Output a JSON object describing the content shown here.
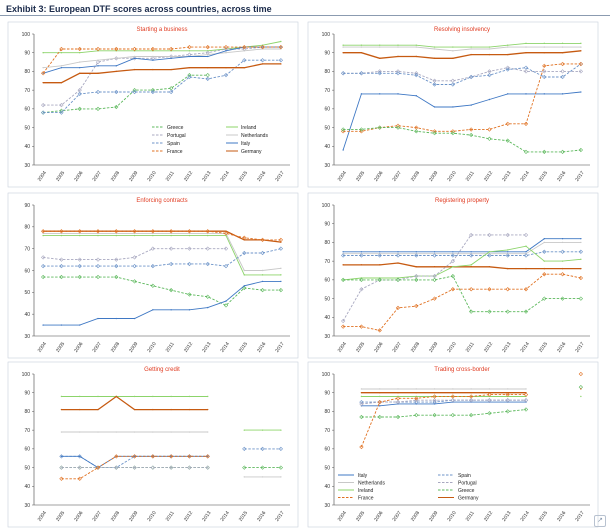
{
  "header": {
    "title": "Exhibit 3: European DTF scores across countries, across time"
  },
  "colors": {
    "Greece": "#5cb85c",
    "Ireland": "#8cd46a",
    "Portugal": "#a8a8c0",
    "Netherlands": "#c8c8c8",
    "Spain": "#6c93c8",
    "Italy": "#3f78c4",
    "France": "#e07020",
    "Germany": "#c65a11"
  },
  "chart_data": [
    {
      "type": "line",
      "title": "Starting a business",
      "categories": [
        "2004",
        "2005",
        "2006",
        "2007",
        "2008",
        "2009",
        "2010",
        "2011",
        "2012",
        "2013",
        "2014",
        "2015",
        "2016",
        "2017"
      ],
      "ylim": [
        30,
        100
      ],
      "yticks": [
        30,
        40,
        50,
        60,
        70,
        80,
        90,
        100
      ],
      "legend": "bottom-right",
      "series": [
        {
          "name": "Greece",
          "dash": true,
          "values": [
            58,
            59,
            60,
            60,
            61,
            70,
            70,
            71,
            78,
            78,
            null,
            null,
            null,
            null
          ]
        },
        {
          "name": "Ireland",
          "dash": false,
          "values": [
            90,
            90,
            90,
            91,
            91,
            91,
            91,
            91,
            91,
            91,
            92,
            93,
            94,
            96
          ]
        },
        {
          "name": "Portugal",
          "dash": true,
          "values": [
            62,
            62,
            70,
            85,
            87,
            87,
            87,
            88,
            89,
            90,
            92,
            92,
            93,
            93
          ]
        },
        {
          "name": "Netherlands",
          "dash": false,
          "values": [
            82,
            83,
            85,
            86,
            87,
            88,
            88,
            88,
            88,
            89,
            90,
            91,
            92,
            92
          ]
        },
        {
          "name": "Spain",
          "dash": true,
          "values": [
            58,
            58,
            68,
            69,
            69,
            69,
            69,
            69,
            77,
            76,
            78,
            86,
            86,
            86
          ]
        },
        {
          "name": "Italy",
          "dash": false,
          "values": [
            79,
            82,
            82,
            83,
            83,
            87,
            86,
            87,
            88,
            88,
            91,
            93,
            93,
            93
          ]
        },
        {
          "name": "France",
          "dash": true,
          "values": [
            79,
            92,
            92,
            92,
            92,
            92,
            92,
            92,
            93,
            93,
            93,
            93,
            93,
            93
          ]
        },
        {
          "name": "Germany",
          "dash": false,
          "values": [
            74,
            74,
            79,
            79,
            80,
            81,
            81,
            81,
            82,
            82,
            82,
            82,
            84,
            84
          ]
        }
      ]
    },
    {
      "type": "line",
      "title": "Resolving insolvency",
      "categories": [
        "2004",
        "2005",
        "2006",
        "2007",
        "2008",
        "2009",
        "2010",
        "2011",
        "2012",
        "2013",
        "2014",
        "2015",
        "2016",
        "2017"
      ],
      "ylim": [
        30,
        100
      ],
      "yticks": [
        30,
        40,
        50,
        60,
        70,
        80,
        90,
        100
      ],
      "legend": "none",
      "series": [
        {
          "name": "Ireland",
          "dash": false,
          "values": [
            94,
            94,
            94,
            94,
            94,
            93,
            93,
            93,
            93,
            94,
            95,
            95,
            95,
            95
          ]
        },
        {
          "name": "Netherlands",
          "dash": false,
          "values": [
            93,
            93,
            93,
            93,
            93,
            92,
            91,
            92,
            92,
            93,
            93,
            93,
            93,
            93
          ]
        },
        {
          "name": "Germany",
          "dash": false,
          "values": [
            90,
            90,
            87,
            88,
            88,
            87,
            87,
            89,
            89,
            89,
            90,
            90,
            90,
            91
          ]
        },
        {
          "name": "Portugal",
          "dash": true,
          "values": [
            79,
            79,
            80,
            80,
            79,
            75,
            75,
            77,
            80,
            82,
            80,
            80,
            80,
            80
          ]
        },
        {
          "name": "Spain",
          "dash": true,
          "values": [
            79,
            79,
            79,
            79,
            78,
            73,
            73,
            77,
            78,
            81,
            82,
            77,
            77,
            84
          ]
        },
        {
          "name": "Italy",
          "dash": false,
          "values": [
            38,
            68,
            68,
            68,
            67,
            61,
            61,
            62,
            65,
            68,
            68,
            68,
            68,
            69
          ]
        },
        {
          "name": "France",
          "dash": true,
          "values": [
            48,
            48,
            50,
            51,
            50,
            48,
            48,
            49,
            49,
            52,
            52,
            83,
            84,
            84
          ]
        },
        {
          "name": "Greece",
          "dash": true,
          "values": [
            49,
            49,
            50,
            50,
            48,
            47,
            47,
            46,
            44,
            43,
            37,
            37,
            37,
            38
          ]
        }
      ]
    },
    {
      "type": "line",
      "title": "Enforcing contracts",
      "categories": [
        "2004",
        "2005",
        "2006",
        "2007",
        "2008",
        "2009",
        "2010",
        "2011",
        "2012",
        "2013",
        "2014",
        "2015",
        "2016",
        "2017"
      ],
      "ylim": [
        30,
        90
      ],
      "yticks": [
        30,
        40,
        50,
        60,
        70,
        80,
        90
      ],
      "legend": "none",
      "series": [
        {
          "name": "Ireland",
          "dash": false,
          "values": [
            76,
            76,
            76,
            76,
            76,
            76,
            76,
            76,
            76,
            76,
            76,
            58,
            58,
            58
          ]
        },
        {
          "name": "Netherlands",
          "dash": false,
          "values": [
            77,
            77,
            77,
            77,
            77,
            77,
            77,
            77,
            77,
            77,
            77,
            60,
            60,
            61
          ]
        },
        {
          "name": "Germany",
          "dash": false,
          "values": [
            78,
            78,
            78,
            78,
            78,
            78,
            78,
            78,
            78,
            78,
            78,
            74,
            74,
            73
          ]
        },
        {
          "name": "France",
          "dash": true,
          "values": [
            78,
            78,
            78,
            78,
            78,
            78,
            78,
            78,
            78,
            78,
            77,
            75,
            74,
            74
          ]
        },
        {
          "name": "Portugal",
          "dash": true,
          "values": [
            66,
            65,
            65,
            65,
            65,
            66,
            70,
            70,
            70,
            70,
            70,
            null,
            null,
            null
          ]
        },
        {
          "name": "Spain",
          "dash": true,
          "values": [
            62,
            62,
            62,
            62,
            62,
            62,
            62,
            63,
            63,
            63,
            62,
            68,
            68,
            70
          ]
        },
        {
          "name": "Greece",
          "dash": true,
          "values": [
            57,
            57,
            57,
            57,
            57,
            55,
            53,
            51,
            49,
            48,
            44,
            52,
            51,
            51
          ]
        },
        {
          "name": "Italy",
          "dash": false,
          "values": [
            35,
            35,
            35,
            38,
            38,
            38,
            42,
            42,
            42,
            43,
            46,
            53,
            55,
            55
          ]
        }
      ]
    },
    {
      "type": "line",
      "title": "Registering property",
      "categories": [
        "2004",
        "2005",
        "2006",
        "2007",
        "2008",
        "2009",
        "2010",
        "2011",
        "2012",
        "2013",
        "2014",
        "2015",
        "2016",
        "2017"
      ],
      "ylim": [
        30,
        100
      ],
      "yticks": [
        30,
        40,
        50,
        60,
        70,
        80,
        90,
        100
      ],
      "legend": "none",
      "series": [
        {
          "name": "Italy",
          "dash": false,
          "values": [
            75,
            75,
            75,
            75,
            75,
            75,
            75,
            75,
            75,
            75,
            75,
            82,
            82,
            82
          ]
        },
        {
          "name": "Netherlands",
          "dash": false,
          "values": [
            74,
            74,
            74,
            74,
            74,
            74,
            74,
            74,
            74,
            74,
            74,
            80,
            80,
            80
          ]
        },
        {
          "name": "Spain",
          "dash": true,
          "values": [
            73,
            73,
            73,
            73,
            73,
            73,
            73,
            73,
            73,
            73,
            73,
            75,
            75,
            75
          ]
        },
        {
          "name": "Germany",
          "dash": false,
          "values": [
            68,
            68,
            68,
            69,
            67,
            67,
            67,
            67,
            67,
            66,
            66,
            66,
            66,
            66
          ]
        },
        {
          "name": "Ireland",
          "dash": false,
          "values": [
            60,
            61,
            61,
            61,
            62,
            62,
            67,
            68,
            75,
            76,
            78,
            70,
            70,
            71
          ]
        },
        {
          "name": "Portugal",
          "dash": true,
          "values": [
            38,
            55,
            60,
            60,
            62,
            62,
            70,
            84,
            84,
            84,
            84,
            null,
            null,
            null
          ]
        },
        {
          "name": "France",
          "dash": true,
          "values": [
            35,
            35,
            33,
            45,
            46,
            50,
            55,
            55,
            55,
            55,
            55,
            63,
            63,
            61
          ]
        },
        {
          "name": "Greece",
          "dash": true,
          "values": [
            60,
            60,
            60,
            60,
            60,
            60,
            62,
            43,
            43,
            43,
            43,
            50,
            50,
            50
          ]
        }
      ]
    },
    {
      "type": "line",
      "title": "Getting credit",
      "categories": [
        "2004",
        "2005",
        "2006",
        "2007",
        "2008",
        "2009",
        "2010",
        "2011",
        "2012",
        "2013",
        "2014",
        "2015",
        "2016",
        "2017"
      ],
      "ylim": [
        30,
        100
      ],
      "yticks": [
        30,
        40,
        50,
        60,
        70,
        80,
        90,
        100
      ],
      "legend": "none",
      "series": [
        {
          "name": "Ireland",
          "dash": false,
          "values": [
            null,
            88,
            88,
            88,
            88,
            88,
            88,
            88,
            88,
            88,
            null,
            70,
            70,
            70
          ]
        },
        {
          "name": "Germany",
          "dash": false,
          "values": [
            null,
            81,
            81,
            81,
            88,
            81,
            81,
            81,
            81,
            81,
            null,
            null,
            null,
            null
          ]
        },
        {
          "name": "Netherlands",
          "dash": false,
          "values": [
            null,
            69,
            69,
            69,
            69,
            69,
            69,
            69,
            69,
            69,
            null,
            45,
            45,
            45
          ]
        },
        {
          "name": "Spain",
          "dash": true,
          "values": [
            null,
            56,
            56,
            50,
            50,
            56,
            56,
            56,
            56,
            56,
            null,
            60,
            60,
            60
          ]
        },
        {
          "name": "Italy",
          "dash": false,
          "values": [
            null,
            56,
            56,
            50,
            56,
            56,
            56,
            56,
            56,
            56,
            null,
            null,
            null,
            null
          ]
        },
        {
          "name": "Greece",
          "dash": true,
          "values": [
            null,
            50,
            50,
            50,
            50,
            50,
            50,
            50,
            50,
            50,
            null,
            50,
            50,
            50
          ]
        },
        {
          "name": "Portugal",
          "dash": true,
          "values": [
            null,
            50,
            50,
            50,
            50,
            50,
            50,
            50,
            50,
            50,
            null,
            null,
            null,
            null
          ]
        },
        {
          "name": "France",
          "dash": true,
          "values": [
            null,
            44,
            44,
            50,
            56,
            56,
            56,
            56,
            56,
            56,
            null,
            null,
            null,
            null
          ]
        }
      ]
    },
    {
      "type": "line",
      "title": "Trading cross-border",
      "categories": [
        "2004",
        "2005",
        "2006",
        "2007",
        "2008",
        "2009",
        "2010",
        "2011",
        "2012",
        "2013",
        "2014",
        "2015",
        "2016",
        "2017"
      ],
      "ylim": [
        30,
        100
      ],
      "yticks": [
        30,
        40,
        50,
        60,
        70,
        80,
        90,
        100
      ],
      "legend": "bottom",
      "series": [
        {
          "name": "Italy",
          "dash": false,
          "values": [
            null,
            83,
            83,
            84,
            84,
            84,
            85,
            85,
            85,
            85,
            85,
            null,
            null,
            null
          ]
        },
        {
          "name": "Spain",
          "dash": true,
          "values": [
            null,
            85,
            85,
            85,
            85,
            85,
            86,
            86,
            86,
            86,
            86,
            null,
            null,
            null
          ]
        },
        {
          "name": "Netherlands",
          "dash": false,
          "values": [
            null,
            92,
            92,
            92,
            92,
            92,
            92,
            92,
            92,
            92,
            92,
            null,
            null,
            null
          ]
        },
        {
          "name": "Portugal",
          "dash": true,
          "values": [
            null,
            84,
            85,
            85,
            86,
            86,
            86,
            86,
            86,
            86,
            86,
            null,
            null,
            null
          ]
        },
        {
          "name": "Ireland",
          "dash": false,
          "values": [
            null,
            88,
            88,
            88,
            88,
            88,
            88,
            88,
            88,
            88,
            88,
            null,
            null,
            88
          ]
        },
        {
          "name": "Greece",
          "dash": true,
          "values": [
            null,
            77,
            77,
            77,
            78,
            78,
            78,
            78,
            79,
            80,
            81,
            null,
            null,
            93
          ]
        },
        {
          "name": "France",
          "dash": true,
          "values": [
            null,
            61,
            85,
            87,
            87,
            88,
            88,
            88,
            89,
            89,
            89,
            null,
            null,
            100
          ]
        },
        {
          "name": "Germany",
          "dash": false,
          "values": [
            null,
            90,
            90,
            90,
            90,
            90,
            90,
            90,
            90,
            90,
            90,
            null,
            null,
            92
          ]
        }
      ]
    }
  ]
}
